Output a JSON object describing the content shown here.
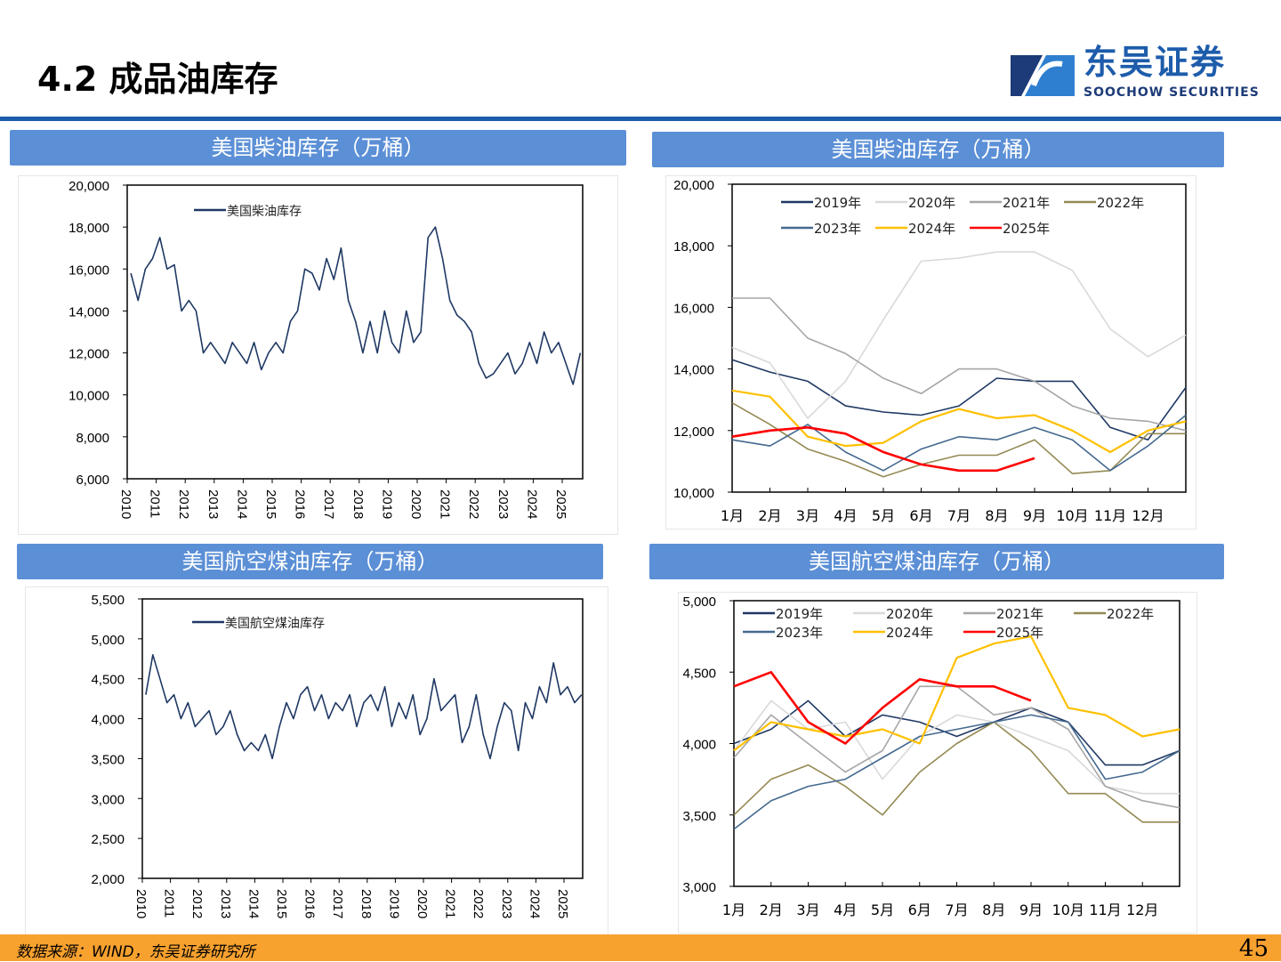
{
  "header": {
    "title": "4.2 成品油库存",
    "logo_cn": "东吴证券",
    "logo_en": "SOOCHOW SECURITIES"
  },
  "footer": {
    "source": "数据来源：WIND，东吴证券研究所",
    "page": "45"
  },
  "colors": {
    "accent": "#1d5cab",
    "panel_header": "#5b8fd6",
    "footer": "#f7a12f"
  },
  "panels": [
    {
      "title": "美国柴油库存（万桶）"
    },
    {
      "title": "美国柴油库存（万桶）"
    },
    {
      "title": "美国航空煤油库存（万桶）"
    },
    {
      "title": "美国航空煤油库存（万桶）"
    }
  ],
  "chart_data": [
    {
      "type": "line",
      "xlabel": "",
      "ylabel": "",
      "ylim": [
        6000,
        20000
      ],
      "y_ticks": [
        "6,000",
        "8,000",
        "10,000",
        "12,000",
        "14,000",
        "16,000",
        "18,000",
        "20,000"
      ],
      "x_ticks": [
        "2010",
        "2011",
        "2012",
        "2013",
        "2014",
        "2015",
        "2016",
        "2017",
        "2018",
        "2019",
        "2020",
        "2021",
        "2022",
        "2023",
        "2024",
        "2025"
      ],
      "legend": "top-left",
      "series": [
        {
          "name": "美国柴油库存",
          "color": "#1f3864",
          "frequency": "quarterly",
          "start": 2010,
          "values": [
            15800,
            14500,
            16000,
            16500,
            17500,
            16000,
            16200,
            14000,
            14500,
            14000,
            12000,
            12500,
            12000,
            11500,
            12500,
            12000,
            11500,
            12500,
            11200,
            12000,
            12500,
            12000,
            13500,
            14000,
            16000,
            15800,
            15000,
            16500,
            15500,
            17000,
            14500,
            13500,
            12000,
            13500,
            12000,
            14000,
            12500,
            12000,
            14000,
            12500,
            13000,
            17500,
            18000,
            16500,
            14500,
            13800,
            13500,
            13000,
            11500,
            10800,
            11000,
            11500,
            12000,
            11000,
            11500,
            12500,
            11500,
            13000,
            12000,
            12500,
            11500,
            10500,
            12000
          ]
        }
      ]
    },
    {
      "type": "line",
      "xlabel": "",
      "ylabel": "",
      "ylim": [
        10000,
        20000
      ],
      "y_ticks": [
        "10,000",
        "12,000",
        "14,000",
        "16,000",
        "18,000",
        "20,000"
      ],
      "x_ticks": [
        "1月",
        "2月",
        "3月",
        "4月",
        "5月",
        "6月",
        "7月",
        "8月",
        "9月",
        "10月",
        "11月",
        "12月"
      ],
      "legend": "top",
      "series": [
        {
          "name": "2019年",
          "color": "#1f3864",
          "values": [
            14300,
            13900,
            13600,
            12800,
            12600,
            12500,
            12800,
            13700,
            13600,
            13600,
            12100,
            11700,
            13400
          ]
        },
        {
          "name": "2020年",
          "color": "#d9d9d9",
          "values": [
            14700,
            14200,
            12400,
            13600,
            15600,
            17500,
            17600,
            17800,
            17800,
            17200,
            15300,
            14400,
            15100
          ]
        },
        {
          "name": "2021年",
          "color": "#a6a6a6",
          "values": [
            16300,
            16300,
            15000,
            14500,
            13700,
            13200,
            14000,
            14000,
            13600,
            12800,
            12400,
            12300,
            12000
          ]
        },
        {
          "name": "2022年",
          "color": "#948a54",
          "values": [
            12900,
            12200,
            11400,
            11000,
            10500,
            10900,
            11200,
            11200,
            11700,
            10600,
            10700,
            11900,
            11900
          ]
        },
        {
          "name": "2023年",
          "color": "#44698f",
          "values": [
            11700,
            11500,
            12200,
            11300,
            10700,
            11400,
            11800,
            11700,
            12100,
            11700,
            10700,
            11500,
            12500
          ]
        },
        {
          "name": "2024年",
          "color": "#ffc000",
          "values": [
            13300,
            13100,
            11800,
            11500,
            11600,
            12300,
            12700,
            12400,
            12500,
            12000,
            11300,
            12000,
            12300
          ]
        },
        {
          "name": "2025年",
          "color": "#ff0000",
          "values": [
            11800,
            12000,
            12100,
            11900,
            11300,
            10900,
            10700,
            10700,
            11100
          ]
        }
      ]
    },
    {
      "type": "line",
      "xlabel": "",
      "ylabel": "",
      "ylim": [
        2000,
        5500
      ],
      "y_ticks": [
        "2,000",
        "2,500",
        "3,000",
        "3,500",
        "4,000",
        "4,500",
        "5,000",
        "5,500"
      ],
      "x_ticks": [
        "2010",
        "2011",
        "2012",
        "2013",
        "2014",
        "2015",
        "2016",
        "2017",
        "2018",
        "2019",
        "2020",
        "2021",
        "2022",
        "2023",
        "2024",
        "2025"
      ],
      "legend": "top-left",
      "series": [
        {
          "name": "美国航空煤油库存",
          "color": "#1f3864",
          "frequency": "quarterly",
          "start": 2010,
          "values": [
            4300,
            4800,
            4500,
            4200,
            4300,
            4000,
            4200,
            3900,
            4000,
            4100,
            3800,
            3900,
            4100,
            3800,
            3600,
            3700,
            3600,
            3800,
            3500,
            3900,
            4200,
            4000,
            4300,
            4400,
            4100,
            4300,
            4000,
            4200,
            4100,
            4300,
            3900,
            4200,
            4300,
            4100,
            4400,
            3900,
            4200,
            4000,
            4300,
            3800,
            4000,
            4500,
            4100,
            4200,
            4300,
            3700,
            3900,
            4300,
            3800,
            3500,
            3900,
            4200,
            4100,
            3600,
            4200,
            4000,
            4400,
            4200,
            4700,
            4300,
            4400,
            4200,
            4300
          ]
        }
      ]
    },
    {
      "type": "line",
      "xlabel": "",
      "ylabel": "",
      "ylim": [
        3000,
        5000
      ],
      "y_ticks": [
        "3,000",
        "3,500",
        "4,000",
        "4,500",
        "5,000"
      ],
      "x_ticks": [
        "1月",
        "2月",
        "3月",
        "4月",
        "5月",
        "6月",
        "7月",
        "8月",
        "9月",
        "10月",
        "11月",
        "12月"
      ],
      "legend": "top",
      "series": [
        {
          "name": "2019年",
          "color": "#1f3864",
          "values": [
            4000,
            4100,
            4300,
            4050,
            4200,
            4150,
            4050,
            4150,
            4250,
            4150,
            3850,
            3850,
            3950
          ]
        },
        {
          "name": "2020年",
          "color": "#d9d9d9",
          "values": [
            3950,
            4300,
            4100,
            4150,
            3750,
            4050,
            4200,
            4150,
            4050,
            3950,
            3700,
            3650,
            3650
          ]
        },
        {
          "name": "2021年",
          "color": "#a6a6a6",
          "values": [
            3900,
            4200,
            4000,
            3800,
            3950,
            4400,
            4400,
            4200,
            4250,
            4100,
            3700,
            3600,
            3550
          ]
        },
        {
          "name": "2022年",
          "color": "#948a54",
          "values": [
            3500,
            3750,
            3850,
            3700,
            3500,
            3800,
            4000,
            4150,
            3950,
            3650,
            3650,
            3450,
            3450
          ]
        },
        {
          "name": "2023年",
          "color": "#44698f",
          "values": [
            3400,
            3600,
            3700,
            3750,
            3900,
            4050,
            4100,
            4150,
            4200,
            4150,
            3750,
            3800,
            3950
          ]
        },
        {
          "name": "2024年",
          "color": "#ffc000",
          "values": [
            3950,
            4150,
            4100,
            4050,
            4100,
            4000,
            4600,
            4700,
            4750,
            4250,
            4200,
            4050,
            4100
          ]
        },
        {
          "name": "2025年",
          "color": "#ff0000",
          "values": [
            4400,
            4500,
            4150,
            4000,
            4250,
            4450,
            4400,
            4400,
            4300
          ]
        }
      ]
    }
  ]
}
